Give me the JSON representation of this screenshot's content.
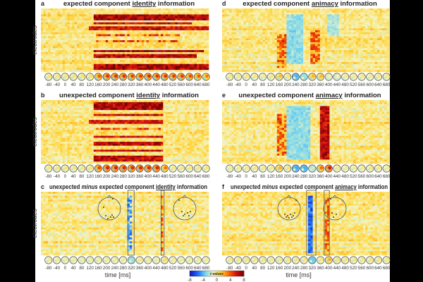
{
  "chart_data": {
    "type": "heatmap",
    "colorbar": {
      "label": "t-values",
      "ticks": [
        "-8",
        "-4",
        "0",
        "4",
        "8"
      ],
      "range": [
        -8,
        8
      ],
      "colors": [
        "#1a10b0",
        "#1565ff",
        "#6fd3f0",
        "#f4f4c0",
        "#ffd640",
        "#ff6a00",
        "#d01010",
        "#700000"
      ]
    },
    "xlabel": "time [ms]",
    "ylabel": "electrodes",
    "x_range_ms": [
      -110,
      700
    ],
    "x_ticks": [
      "-80",
      "-40",
      "0",
      "40",
      "80",
      "120",
      "160",
      "200",
      "240",
      "280",
      "320",
      "360",
      "400",
      "440",
      "480",
      "520",
      "560",
      "600",
      "640",
      "680"
    ],
    "electrode_rows": 32,
    "panels": [
      {
        "letter": "a",
        "title_pre": "expected component ",
        "title_key": "identity",
        "title_post": " information",
        "italic": "",
        "clusters": [
          {
            "t": [
              140,
              700
            ],
            "electrodes": [
              4,
              6
            ],
            "t_value": 7
          },
          {
            "t": [
              150,
              620
            ],
            "electrodes": [
              8,
              8
            ],
            "t_value": 6.5
          },
          {
            "t": [
              120,
              700
            ],
            "electrodes": [
              10,
              11
            ],
            "t_value": 6
          },
          {
            "t": [
              160,
              560
            ],
            "electrodes": [
              14,
              14
            ],
            "t_value": 5
          },
          {
            "t": [
              160,
              560
            ],
            "electrodes": [
              17,
              17
            ],
            "t_value": 5
          },
          {
            "t": [
              140,
              680
            ],
            "electrodes": [
              22,
              22
            ],
            "t_value": 7
          },
          {
            "t": [
              150,
              640
            ],
            "electrodes": [
              24,
              25
            ],
            "t_value": 6.5
          },
          {
            "t": [
              140,
              700
            ],
            "electrodes": [
              29,
              31
            ],
            "t_value": 7
          }
        ]
      },
      {
        "letter": "b",
        "title_pre": "unexpected component ",
        "title_key": "identity",
        "title_post": " information",
        "italic": "",
        "clusters": [
          {
            "t": [
              140,
              480
            ],
            "electrodes": [
              2,
              5
            ],
            "t_value": 7
          },
          {
            "t": [
              150,
              480
            ],
            "electrodes": [
              8,
              8
            ],
            "t_value": 6.5
          },
          {
            "t": [
              120,
              480
            ],
            "electrodes": [
              11,
              12
            ],
            "t_value": 6
          },
          {
            "t": [
              160,
              480
            ],
            "electrodes": [
              15,
              15
            ],
            "t_value": 5
          },
          {
            "t": [
              150,
              480
            ],
            "electrodes": [
              19,
              19
            ],
            "t_value": 6
          },
          {
            "t": [
              140,
              480
            ],
            "electrodes": [
              22,
              23
            ],
            "t_value": 6.5
          },
          {
            "t": [
              150,
              480
            ],
            "electrodes": [
              26,
              26
            ],
            "t_value": 6
          },
          {
            "t": [
              140,
              480
            ],
            "electrodes": [
              29,
              31
            ],
            "t_value": 6.5
          }
        ]
      },
      {
        "letter": "c",
        "title_pre": " expected component ",
        "title_key": "identity",
        "title_post": " information",
        "italic": "minus",
        "lead": "unexpected ",
        "clusters": [
          {
            "t": [
              310,
              330
            ],
            "electrodes": [
              3,
              30
            ],
            "t_value": -5
          },
          {
            "t": [
              470,
              485
            ],
            "electrodes": [
              3,
              30
            ],
            "t_value": 4.5
          }
        ],
        "highlight_ms": [
          [
            310,
            340
          ],
          [
            470,
            485
          ]
        ]
      },
      {
        "letter": "d",
        "title_pre": "expected component ",
        "title_key": "animacy",
        "title_post": " information",
        "italic": "",
        "clusters": [
          {
            "t": [
              160,
              200
            ],
            "electrodes": [
              14,
              30
            ],
            "t_value": 4.5
          },
          {
            "t": [
              200,
              280
            ],
            "electrodes": [
              4,
              28
            ],
            "t_value": -3
          },
          {
            "t": [
              320,
              360
            ],
            "electrodes": [
              12,
              28
            ],
            "t_value": 4.5
          },
          {
            "t": [
              400,
              460
            ],
            "electrodes": [
              4,
              14
            ],
            "t_value": -2.5
          }
        ]
      },
      {
        "letter": "e",
        "title_pre": "unexpected component ",
        "title_key": "animacy",
        "title_post": " information",
        "italic": "",
        "clusters": [
          {
            "t": [
              160,
              200
            ],
            "electrodes": [
              8,
              28
            ],
            "t_value": 4.5
          },
          {
            "t": [
              200,
              320
            ],
            "electrodes": [
              4,
              30
            ],
            "t_value": -3
          },
          {
            "t": [
              360,
              410
            ],
            "electrodes": [
              4,
              30
            ],
            "t_value": 6.5
          }
        ]
      },
      {
        "letter": "f",
        "title_pre": " expected component ",
        "title_key": "animacy",
        "title_post": " information",
        "italic": "minus",
        "lead": "unexpected ",
        "clusters": [
          {
            "t": [
              305,
              335
            ],
            "electrodes": [
              3,
              31
            ],
            "t_value": -6
          },
          {
            "t": [
              390,
              405
            ],
            "electrodes": [
              3,
              30
            ],
            "t_value": 4.5
          }
        ],
        "highlight_ms": [
          [
            300,
            345
          ],
          [
            385,
            410
          ]
        ]
      }
    ]
  }
}
